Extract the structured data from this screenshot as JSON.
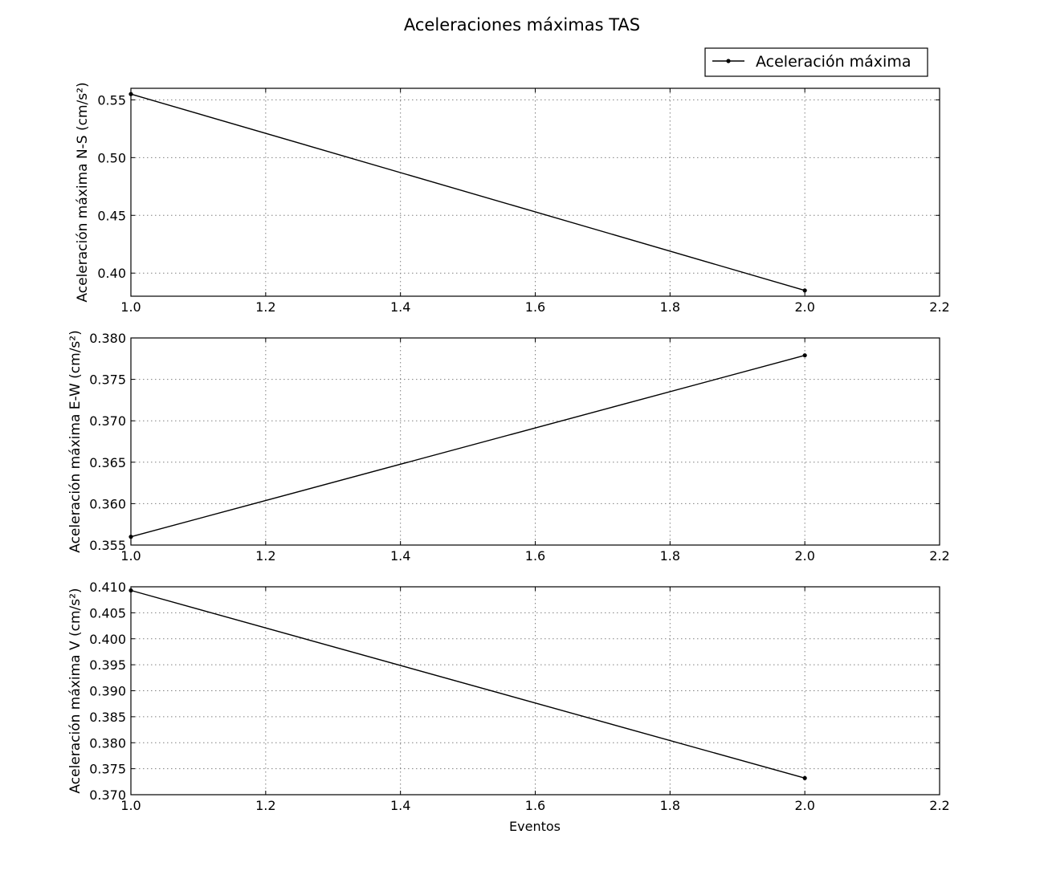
{
  "chart_data": {
    "type": "line",
    "title": "Aceleraciones máximas TAS",
    "legend": {
      "label": "Aceleración máxima",
      "placement": "top-right"
    },
    "xlabel": "Eventos",
    "grid": true,
    "panels": [
      {
        "id": "ns",
        "ylabel": "Aceleración máxima N-S (cm/s²)",
        "xlim": [
          1.0,
          2.2
        ],
        "ylim": [
          0.38,
          0.56
        ],
        "xticks": [
          "1.0",
          "1.2",
          "1.4",
          "1.6",
          "1.8",
          "2.0",
          "2.2"
        ],
        "yticks": [
          "0.40",
          "0.45",
          "0.50",
          "0.55"
        ],
        "series": [
          {
            "x": [
              1,
              2
            ],
            "y": [
              0.555,
              0.385
            ]
          }
        ]
      },
      {
        "id": "ew",
        "ylabel": "Aceleración máxima E-W (cm/s²)",
        "xlim": [
          1.0,
          2.2
        ],
        "ylim": [
          0.355,
          0.38
        ],
        "xticks": [
          "1.0",
          "1.2",
          "1.4",
          "1.6",
          "1.8",
          "2.0",
          "2.2"
        ],
        "yticks": [
          "0.355",
          "0.360",
          "0.365",
          "0.370",
          "0.375",
          "0.380"
        ],
        "series": [
          {
            "x": [
              1,
              2
            ],
            "y": [
              0.356,
              0.3779
            ]
          }
        ]
      },
      {
        "id": "v",
        "ylabel": "Aceleración máxima V (cm/s²)",
        "xlim": [
          1.0,
          2.2
        ],
        "ylim": [
          0.37,
          0.41
        ],
        "xticks": [
          "1.0",
          "1.2",
          "1.4",
          "1.6",
          "1.8",
          "2.0",
          "2.2"
        ],
        "yticks": [
          "0.370",
          "0.375",
          "0.380",
          "0.385",
          "0.390",
          "0.395",
          "0.400",
          "0.405",
          "0.410"
        ],
        "series": [
          {
            "x": [
              1,
              2
            ],
            "y": [
              0.4093,
              0.3732
            ]
          }
        ]
      }
    ]
  }
}
